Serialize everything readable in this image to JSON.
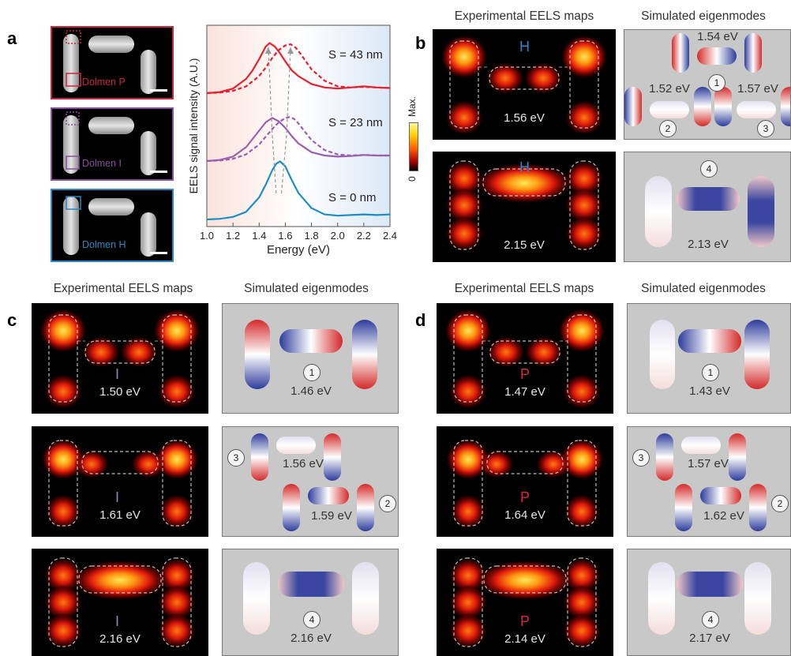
{
  "panels": {
    "a": "a",
    "b": "b",
    "c": "c",
    "d": "d"
  },
  "headers": {
    "exp": "Experimental EELS maps",
    "sim": "Simulated eigenmodes"
  },
  "panel_a": {
    "sem": [
      {
        "name": "Dolmen P",
        "color": "#c8283c"
      },
      {
        "name": "Dolmen I",
        "color": "#8a4fa0"
      },
      {
        "name": "Dolmen H",
        "color": "#2a88c6"
      }
    ]
  },
  "colorbar": {
    "max": "Max.",
    "min": "0"
  },
  "chart_data": {
    "type": "line",
    "xlabel": "Energy (eV)",
    "ylabel": "EELS signal intensity (A.U.)",
    "xlim": [
      1.0,
      2.4
    ],
    "xticks": [
      "1.0",
      "1.2",
      "1.4",
      "1.6",
      "1.8",
      "2.0",
      "2.2",
      "2.4"
    ],
    "series": [
      {
        "name": "S = 43 nm",
        "color": "#e8202e",
        "style": "solid",
        "x": [
          1.0,
          1.1,
          1.2,
          1.3,
          1.35,
          1.4,
          1.45,
          1.48,
          1.52,
          1.56,
          1.6,
          1.65,
          1.7,
          1.8,
          1.9,
          2.0,
          2.1,
          2.2,
          2.3,
          2.4
        ],
        "y": [
          0.0,
          0.02,
          0.08,
          0.25,
          0.4,
          0.6,
          0.82,
          0.88,
          0.82,
          0.7,
          0.56,
          0.4,
          0.3,
          0.16,
          0.1,
          0.08,
          0.1,
          0.12,
          0.1,
          0.09
        ]
      },
      {
        "name": "",
        "color": "#e8202e",
        "style": "dashed",
        "x": [
          1.0,
          1.1,
          1.2,
          1.3,
          1.4,
          1.45,
          1.5,
          1.55,
          1.6,
          1.64,
          1.68,
          1.72,
          1.8,
          1.9,
          2.0,
          2.1,
          2.2,
          2.3,
          2.4
        ],
        "y": [
          0.0,
          0.01,
          0.04,
          0.12,
          0.3,
          0.45,
          0.62,
          0.76,
          0.84,
          0.86,
          0.8,
          0.68,
          0.42,
          0.22,
          0.12,
          0.1,
          0.11,
          0.1,
          0.09
        ]
      },
      {
        "name": "S = 23 nm",
        "color": "#9b5fb0",
        "style": "solid",
        "x": [
          1.0,
          1.1,
          1.2,
          1.3,
          1.4,
          1.45,
          1.5,
          1.55,
          1.6,
          1.65,
          1.7,
          1.8,
          1.9,
          2.0,
          2.1,
          2.2,
          2.3,
          2.4
        ],
        "y": [
          0.0,
          0.02,
          0.08,
          0.25,
          0.55,
          0.7,
          0.78,
          0.72,
          0.6,
          0.45,
          0.32,
          0.16,
          0.1,
          0.08,
          0.09,
          0.11,
          0.1,
          0.1
        ]
      },
      {
        "name": "",
        "color": "#9b5fb0",
        "style": "dashed",
        "x": [
          1.0,
          1.1,
          1.2,
          1.3,
          1.4,
          1.5,
          1.55,
          1.6,
          1.64,
          1.68,
          1.72,
          1.8,
          1.9,
          2.0,
          2.1,
          2.2,
          2.3,
          2.4
        ],
        "y": [
          0.0,
          0.01,
          0.04,
          0.12,
          0.3,
          0.58,
          0.7,
          0.78,
          0.8,
          0.74,
          0.62,
          0.38,
          0.2,
          0.12,
          0.1,
          0.11,
          0.1,
          0.1
        ]
      },
      {
        "name": "S = 0 nm",
        "color": "#1c8fc8",
        "style": "solid",
        "x": [
          1.0,
          1.1,
          1.2,
          1.3,
          1.4,
          1.45,
          1.5,
          1.53,
          1.56,
          1.6,
          1.65,
          1.7,
          1.8,
          1.9,
          2.0,
          2.1,
          2.2,
          2.3,
          2.4
        ],
        "y": [
          0.0,
          0.01,
          0.04,
          0.12,
          0.35,
          0.55,
          0.78,
          0.88,
          0.92,
          0.84,
          0.62,
          0.42,
          0.18,
          0.08,
          0.06,
          0.07,
          0.08,
          0.07,
          0.08
        ]
      }
    ]
  },
  "panel_b": {
    "maps": [
      {
        "letter": "H",
        "energy": "1.56 eV"
      },
      {
        "letter": "H",
        "energy": "2.15 eV"
      }
    ],
    "sims": [
      {
        "labels": [
          {
            "num": "1",
            "energy": "1.54 eV"
          },
          {
            "num": "2",
            "energy": "1.52 eV"
          },
          {
            "num": "3",
            "energy": "1.57 eV"
          }
        ]
      },
      {
        "labels": [
          {
            "num": "4",
            "energy": "2.13 eV"
          }
        ]
      }
    ]
  },
  "panel_c": {
    "maps": [
      {
        "letter": "I",
        "energy": "1.50 eV"
      },
      {
        "letter": "I",
        "energy": "1.61 eV"
      },
      {
        "letter": "I",
        "energy": "2.16 eV"
      }
    ],
    "sims": [
      {
        "num": "1",
        "energy": "1.46 eV"
      },
      {
        "num_a": "3",
        "energy_a": "1.56 eV",
        "num_b": "2",
        "energy_b": "1.59 eV"
      },
      {
        "num": "4",
        "energy": "2.16 eV"
      }
    ]
  },
  "panel_d": {
    "maps": [
      {
        "letter": "P",
        "energy": "1.47 eV"
      },
      {
        "letter": "P",
        "energy": "1.64 eV"
      },
      {
        "letter": "P",
        "energy": "2.14 eV"
      }
    ],
    "sims": [
      {
        "num": "1",
        "energy": "1.43 eV"
      },
      {
        "num_a": "3",
        "energy_a": "1.57 eV",
        "num_b": "2",
        "energy_b": "1.62 eV"
      },
      {
        "num": "4",
        "energy": "2.17 eV"
      }
    ]
  }
}
